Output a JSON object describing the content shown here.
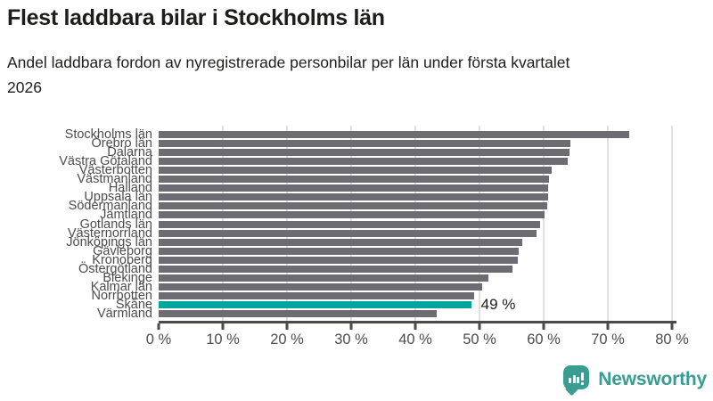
{
  "header": {
    "title": "Flest laddbara bilar i Stockholms län",
    "subtitle": "Andel laddbara fordon av nyregistrerade personbilar per län under första kvartalet 2026"
  },
  "chart_data": {
    "type": "bar",
    "orientation": "horizontal",
    "title": "Flest laddbara bilar i Stockholms län",
    "subtitle": "Andel laddbara fordon av nyregistrerade personbilar per län under första kvartalet 2026",
    "categories": [
      "Stockholms län",
      "Örebro län",
      "Dalarna",
      "Västra Götaland",
      "Västerbotten",
      "Västmanland",
      "Halland",
      "Uppsala län",
      "Södermanland",
      "Jämtland",
      "Gotlands län",
      "Västernorrland",
      "Jönköpings län",
      "Gävleborg",
      "Kronoberg",
      "Östergötland",
      "Blekinge",
      "Kalmar län",
      "Norrbotten",
      "Skåne",
      "Värmland"
    ],
    "values": [
      73.4,
      64.2,
      64,
      63.7,
      61.2,
      60.8,
      60.7,
      60.7,
      60.6,
      60.1,
      59.4,
      58.9,
      56.7,
      56.1,
      56,
      55.1,
      51.4,
      50.4,
      49.1,
      48.7,
      43.4
    ],
    "unit": "%",
    "xlabel": "",
    "ylabel": "",
    "xlim": [
      0,
      80
    ],
    "x_ticks": [
      0,
      10,
      20,
      30,
      40,
      50,
      60,
      70,
      80
    ],
    "x_tick_labels": [
      "0 %",
      "10 %",
      "20 %",
      "30 %",
      "40 %",
      "50 %",
      "60 %",
      "70 %",
      "80 %"
    ],
    "grid": true,
    "legend": false,
    "bar_color": "#6c6c72",
    "highlight_color": "#00a69c",
    "highlight": {
      "category": "Skåne",
      "index": 19,
      "label": "49 %"
    }
  },
  "footer": {
    "brand": "Newsworthy",
    "logo_icon": "bar-chart-speech-bubble-icon",
    "brand_color": "#3b9c92"
  }
}
